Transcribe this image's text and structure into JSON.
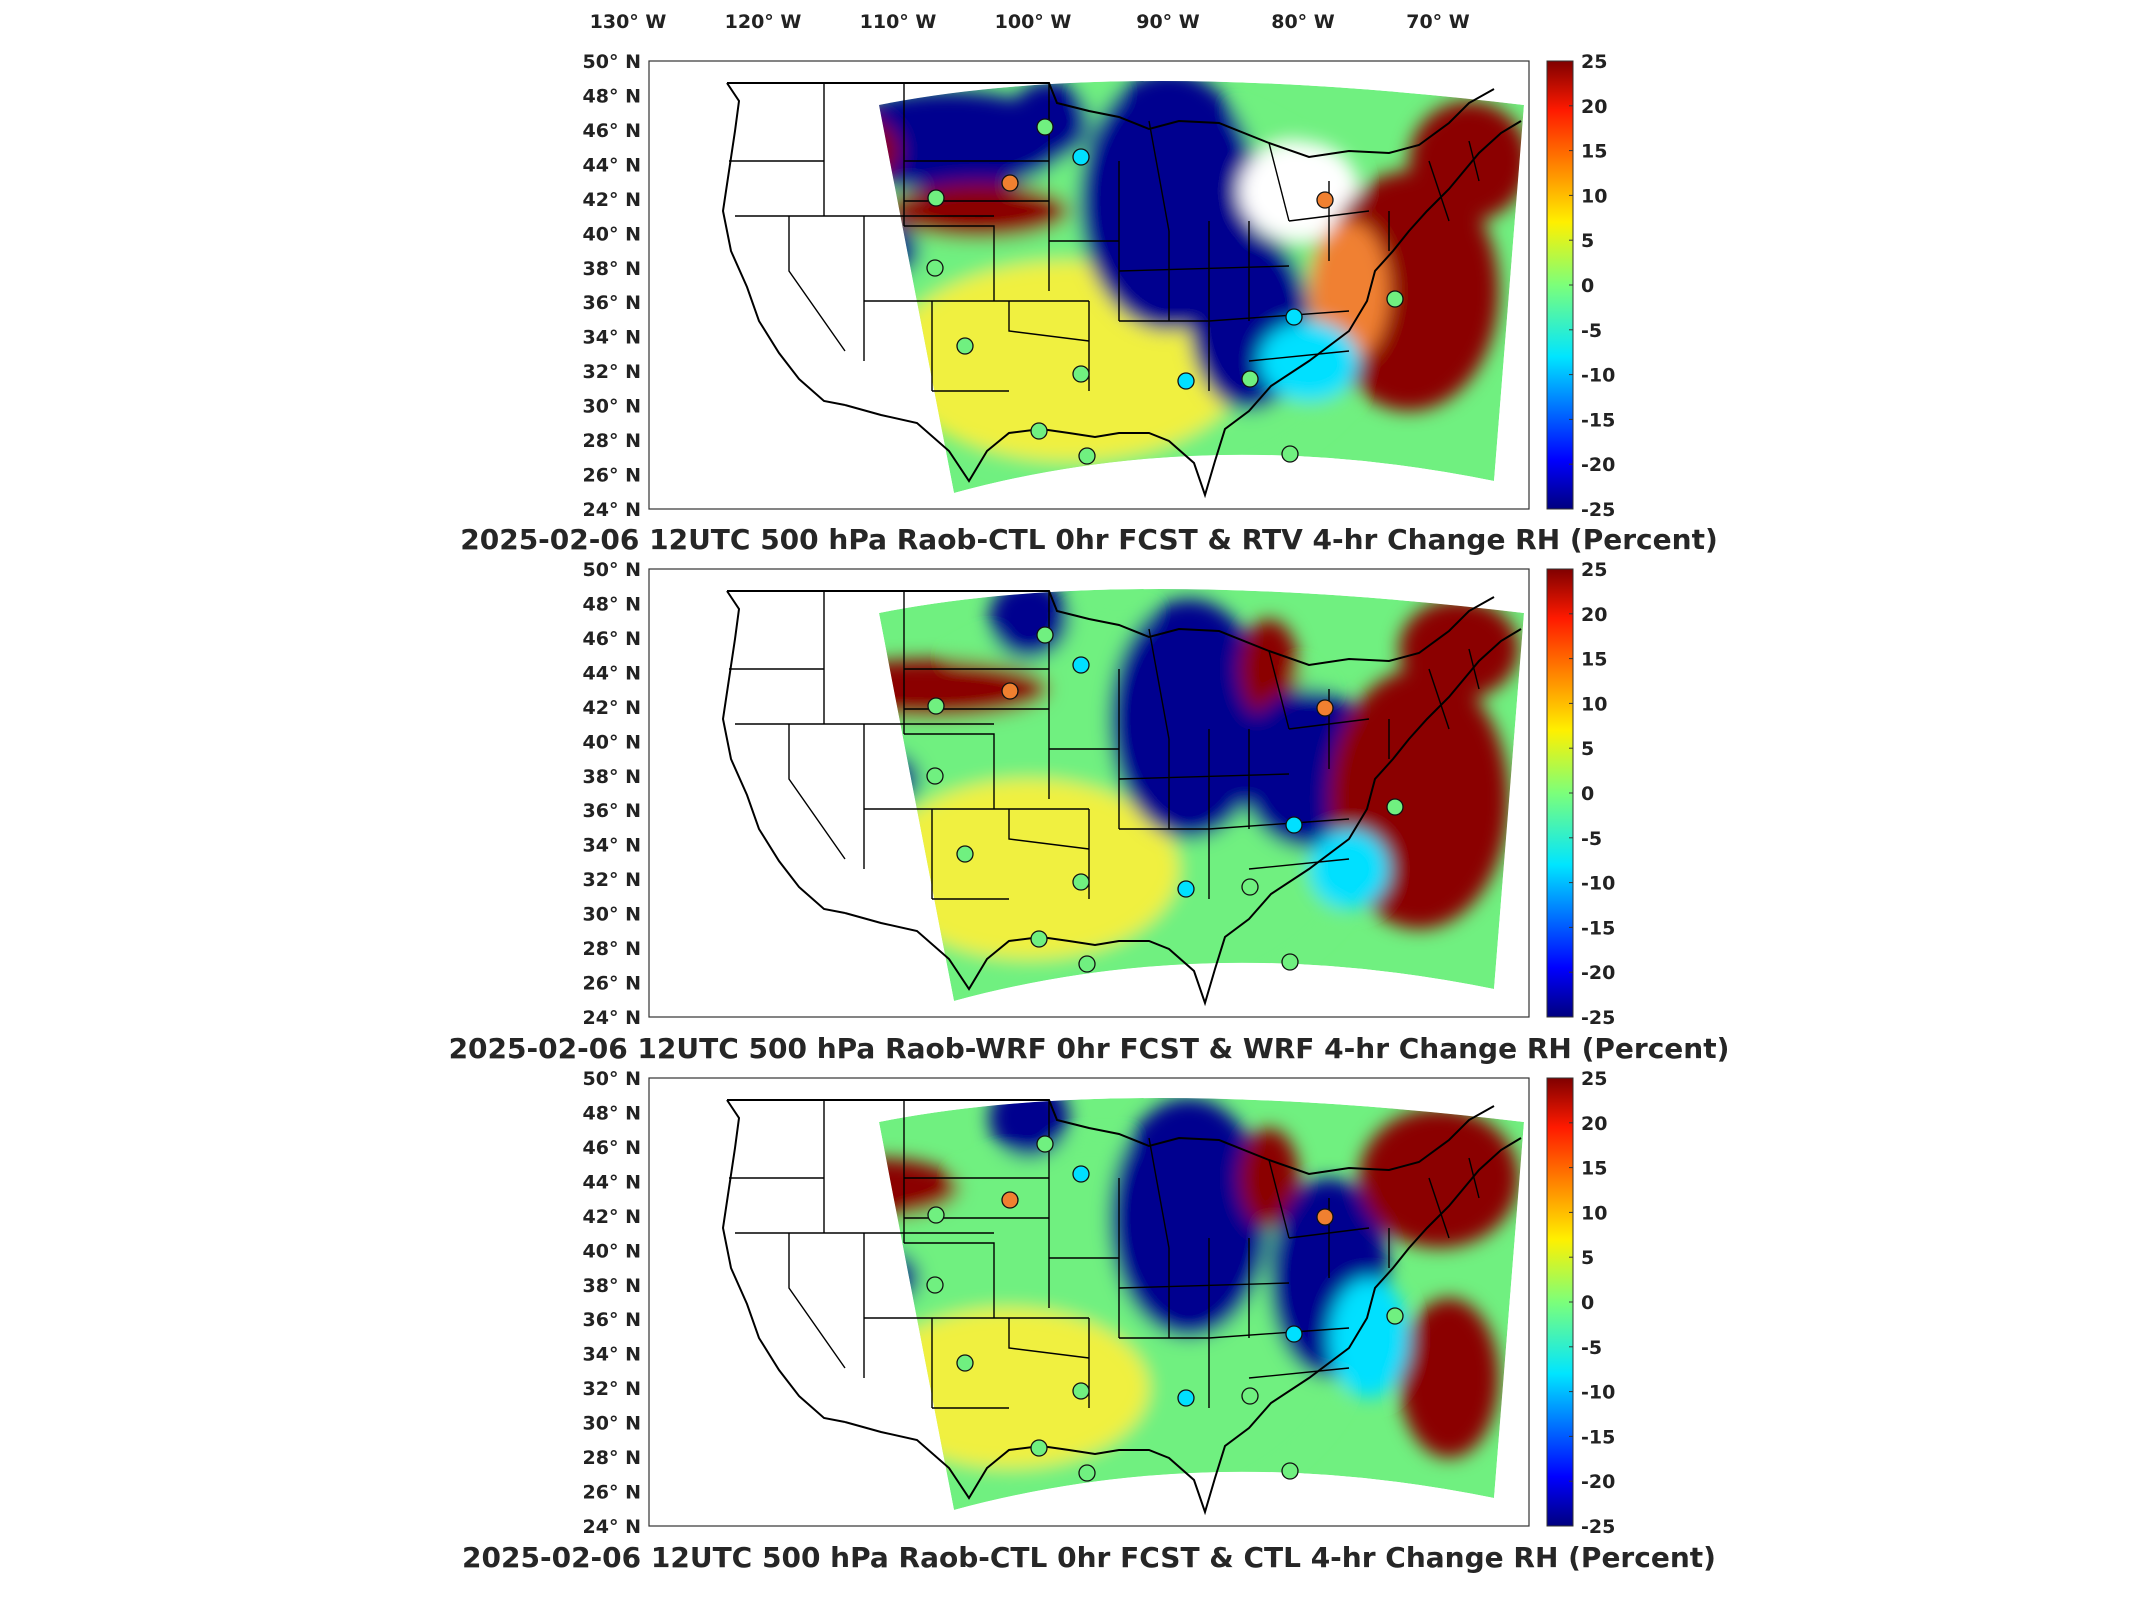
{
  "lon_ticks": [
    "130° W",
    "120° W",
    "110° W",
    "100° W",
    "90° W",
    "80° W",
    "70° W"
  ],
  "lat_ticks": [
    "50° N",
    "48° N",
    "46° N",
    "44° N",
    "42° N",
    "40° N",
    "38° N",
    "36° N",
    "34° N",
    "32° N",
    "30° N",
    "28° N",
    "26° N",
    "24° N"
  ],
  "colorbar": {
    "ticks": [
      "25",
      "20",
      "15",
      "10",
      "5",
      "0",
      "-5",
      "-10",
      "-15",
      "-20",
      "-25"
    ],
    "colormap": "jet",
    "range": [
      -25,
      25
    ]
  },
  "panels": [
    {
      "title": "2025-02-06 12UTC 500 hPa Raob-CTL 0hr FCST & RTV 4-hr Change RH (Percent)",
      "field": "RTV 4-hr Change RH"
    },
    {
      "title": "2025-02-06 12UTC 500 hPa Raob-WRF 0hr FCST & WRF 4-hr Change RH (Percent)",
      "field": "WRF 4-hr Change RH"
    },
    {
      "title": "2025-02-06 12UTC 500 hPa Raob-CTL 0hr FCST & CTL 4-hr Change RH (Percent)",
      "field": "CTL 4-hr Change RH"
    }
  ],
  "colors": {
    "red": "#8b0000",
    "blue": "#00008f",
    "cyan": "#00e0ff",
    "green": "#70f080",
    "yellow": "#f0f040",
    "orange": "#f08030"
  }
}
